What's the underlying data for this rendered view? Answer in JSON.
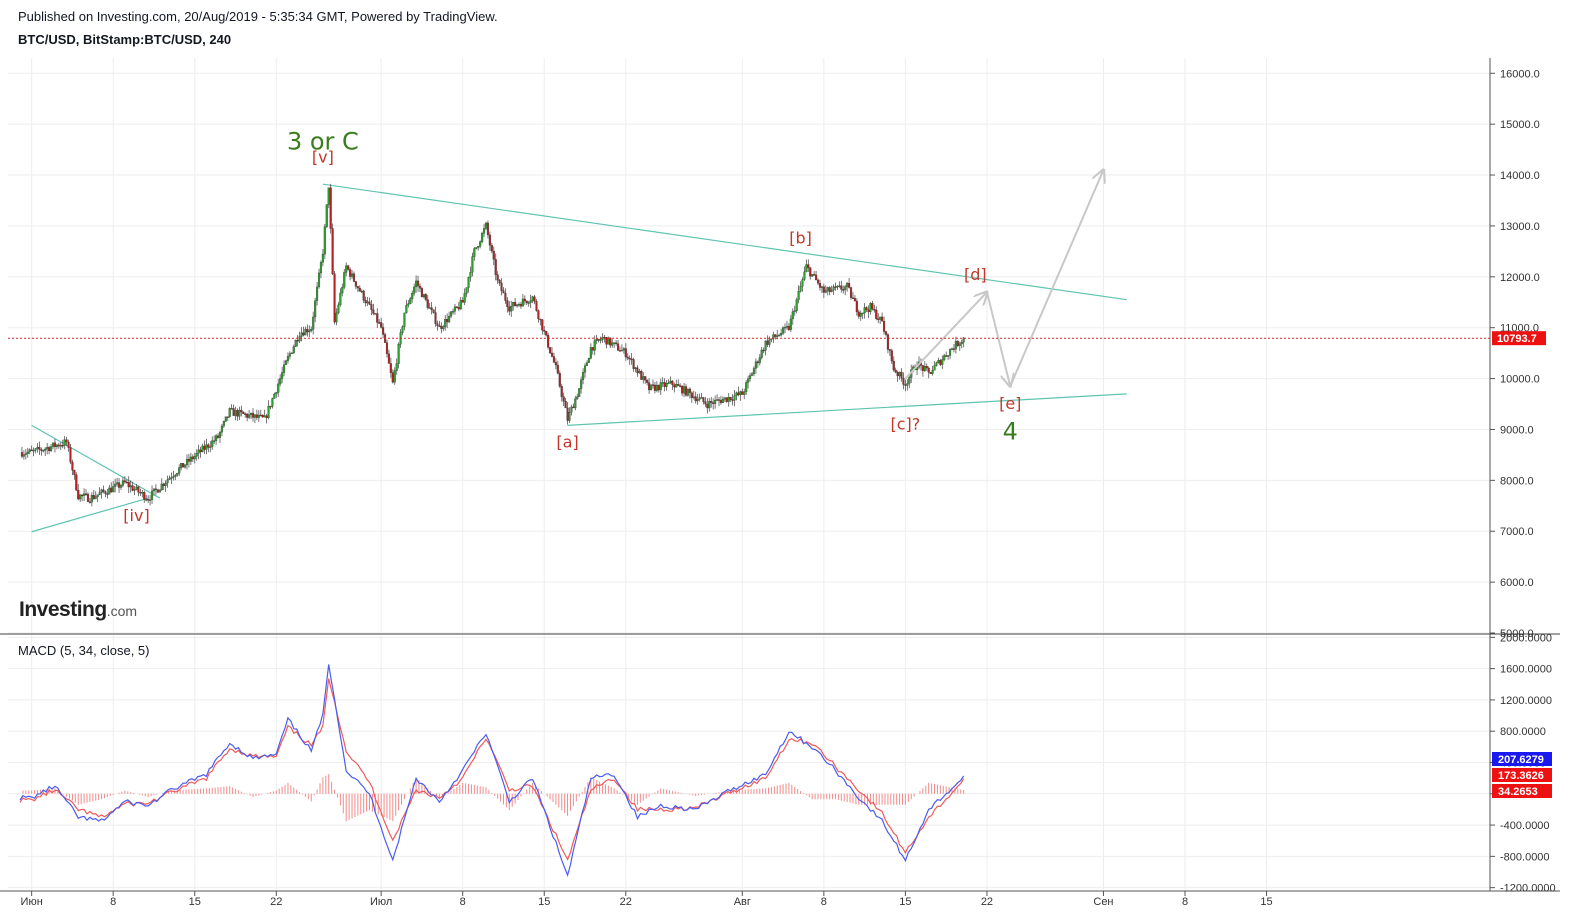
{
  "header": {
    "published": "Published on Investing.com, 20/Aug/2019 - 5:35:34 GMT, Powered by TradingView.",
    "symbol": "BTC/USD, BitStamp:BTC/USD, 240"
  },
  "logo": {
    "bold": "Investing",
    "suffix": ".com"
  },
  "macd_label": "MACD (5, 34, close, 5)",
  "colors": {
    "up": "#2e9e2e",
    "down": "#b22222",
    "trend": "#5ec4b0",
    "price_line": "#e02020",
    "wave_label": "#c0392b",
    "wave_big": "#3a7d1e",
    "projection": "#c8c8c8",
    "macd_line": "#4a5cf0",
    "signal_line": "#ef5a5a",
    "hist": "#f28b8b",
    "grid": "#eeeeee"
  },
  "chart_data": [
    {
      "type": "candlestick",
      "title": "BTC/USD, BitStamp:BTC/USD, 240",
      "ylim": [
        5000,
        16300
      ],
      "y_ticks": [
        "16000.0",
        "15000.0",
        "14000.0",
        "13000.0",
        "12000.0",
        "11000.0",
        "10000.0",
        "9000.0",
        "8000.0",
        "7000.0",
        "6000.0",
        "5000.0"
      ],
      "last_price": 10793.7,
      "last_price_label": "10793.7",
      "x_ticks": [
        "Июн",
        "8",
        "15",
        "22",
        "Июл",
        "8",
        "15",
        "22",
        "Авг",
        "8",
        "15",
        "22",
        "Сен",
        "8",
        "15"
      ],
      "price_path": [
        [
          "2019-06-01",
          8550
        ],
        [
          "2019-06-04",
          8750
        ],
        [
          "2019-06-05",
          7700
        ],
        [
          "2019-06-06",
          7650
        ],
        [
          "2019-06-09",
          7950
        ],
        [
          "2019-06-11",
          7650
        ],
        [
          "2019-06-13",
          8100
        ],
        [
          "2019-06-17",
          8850
        ],
        [
          "2019-06-18",
          9350
        ],
        [
          "2019-06-21",
          9200
        ],
        [
          "2019-06-23",
          10400
        ],
        [
          "2019-06-24",
          10900
        ],
        [
          "2019-06-25",
          11000
        ],
        [
          "2019-06-26",
          12500
        ],
        [
          "2019-06-26T12",
          13800
        ],
        [
          "2019-06-27",
          11100
        ],
        [
          "2019-06-28",
          12200
        ],
        [
          "2019-07-01",
          11000
        ],
        [
          "2019-07-02",
          9900
        ],
        [
          "2019-07-03",
          11300
        ],
        [
          "2019-07-04",
          11900
        ],
        [
          "2019-07-06",
          11000
        ],
        [
          "2019-07-08",
          11500
        ],
        [
          "2019-07-09",
          12500
        ],
        [
          "2019-07-10",
          13000
        ],
        [
          "2019-07-11",
          11900
        ],
        [
          "2019-07-12",
          11400
        ],
        [
          "2019-07-14",
          11600
        ],
        [
          "2019-07-15",
          10900
        ],
        [
          "2019-07-16",
          10200
        ],
        [
          "2019-07-17",
          9200
        ],
        [
          "2019-07-18",
          9800
        ],
        [
          "2019-07-19",
          10600
        ],
        [
          "2019-07-20",
          10800
        ],
        [
          "2019-07-22",
          10500
        ],
        [
          "2019-07-24",
          9800
        ],
        [
          "2019-07-26",
          9900
        ],
        [
          "2019-07-29",
          9500
        ],
        [
          "2019-08-01",
          9700
        ],
        [
          "2019-08-03",
          10700
        ],
        [
          "2019-08-05",
          11000
        ],
        [
          "2019-08-06",
          11800
        ],
        [
          "2019-08-06T12",
          12200
        ],
        [
          "2019-08-08",
          11700
        ],
        [
          "2019-08-10",
          11800
        ],
        [
          "2019-08-11",
          11300
        ],
        [
          "2019-08-12",
          11400
        ],
        [
          "2019-08-13",
          11100
        ],
        [
          "2019-08-14",
          10200
        ],
        [
          "2019-08-15",
          9900
        ],
        [
          "2019-08-16",
          10300
        ],
        [
          "2019-08-17",
          10100
        ],
        [
          "2019-08-19",
          10600
        ],
        [
          "2019-08-20",
          10793.7
        ]
      ],
      "trendlines": [
        [
          [
            "2019-06-26",
            13820
          ],
          [
            "2019-09-03",
            11550
          ]
        ],
        [
          [
            "2019-07-17",
            9080
          ],
          [
            "2019-09-03",
            9700
          ]
        ],
        [
          [
            "2019-06-01",
            9080
          ],
          [
            "2019-06-12",
            7650
          ]
        ],
        [
          [
            "2019-06-01",
            6990
          ],
          [
            "2019-06-11",
            7650
          ]
        ]
      ],
      "projection": [
        [
          "2019-08-15",
          10000
        ],
        [
          "2019-08-22",
          11700
        ],
        [
          "2019-08-24",
          9850
        ],
        [
          "2019-09-01",
          14100
        ]
      ],
      "wave_labels": [
        {
          "text": "[iv]",
          "x": "2019-06-10",
          "y": 7200
        },
        {
          "text": "[v]",
          "x": "2019-06-26",
          "y": 14250
        },
        {
          "text": "[a]",
          "x": "2019-07-17",
          "y": 8650
        },
        {
          "text": "[b]",
          "x": "2019-08-06",
          "y": 12650
        },
        {
          "text": "[c]?",
          "x": "2019-08-15",
          "y": 9000
        },
        {
          "text": "[d]",
          "x": "2019-08-21",
          "y": 11940
        },
        {
          "text": "[e]",
          "x": "2019-08-24",
          "y": 9400
        }
      ],
      "big_labels": [
        {
          "text": "3 or C",
          "x": "2019-06-26",
          "y": 14500
        },
        {
          "text": "4",
          "x": "2019-08-24",
          "y": 8800
        }
      ]
    },
    {
      "type": "line",
      "title": "MACD (5, 34, close, 5)",
      "ylim": [
        -1230,
        2030
      ],
      "y_ticks": [
        "2000.0000",
        "1600.0000",
        "1200.0000",
        "800.0000",
        "400.0000",
        "0.0000",
        "-400.0000",
        "-800.0000",
        "-1200.0000"
      ],
      "last_labels": {
        "macd": "207.6279",
        "signal": "173.3626",
        "histogram": "34.2653"
      },
      "macd": [
        [
          "2019-06-01",
          -50
        ],
        [
          "2019-06-03",
          100
        ],
        [
          "2019-06-05",
          -300
        ],
        [
          "2019-06-07",
          -350
        ],
        [
          "2019-06-09",
          -100
        ],
        [
          "2019-06-11",
          -150
        ],
        [
          "2019-06-13",
          50
        ],
        [
          "2019-06-16",
          250
        ],
        [
          "2019-06-18",
          650
        ],
        [
          "2019-06-20",
          450
        ],
        [
          "2019-06-22",
          500
        ],
        [
          "2019-06-23",
          950
        ],
        [
          "2019-06-25",
          550
        ],
        [
          "2019-06-26",
          1000
        ],
        [
          "2019-06-26T12",
          1680
        ],
        [
          "2019-06-28",
          300
        ],
        [
          "2019-06-30",
          0
        ],
        [
          "2019-07-02",
          -850
        ],
        [
          "2019-07-04",
          200
        ],
        [
          "2019-07-06",
          -100
        ],
        [
          "2019-07-08",
          300
        ],
        [
          "2019-07-10",
          780
        ],
        [
          "2019-07-12",
          -100
        ],
        [
          "2019-07-14",
          200
        ],
        [
          "2019-07-17",
          -1050
        ],
        [
          "2019-07-19",
          200
        ],
        [
          "2019-07-21",
          250
        ],
        [
          "2019-07-23",
          -300
        ],
        [
          "2019-07-25",
          -150
        ],
        [
          "2019-07-28",
          -200
        ],
        [
          "2019-07-31",
          50
        ],
        [
          "2019-08-03",
          250
        ],
        [
          "2019-08-05",
          800
        ],
        [
          "2019-08-07",
          600
        ],
        [
          "2019-08-09",
          300
        ],
        [
          "2019-08-11",
          -50
        ],
        [
          "2019-08-13",
          -350
        ],
        [
          "2019-08-15",
          -850
        ],
        [
          "2019-08-17",
          -200
        ],
        [
          "2019-08-20",
          207.6279
        ]
      ],
      "signal": [
        [
          "2019-06-01",
          -80
        ],
        [
          "2019-06-03",
          50
        ],
        [
          "2019-06-05",
          -200
        ],
        [
          "2019-06-07",
          -300
        ],
        [
          "2019-06-09",
          -130
        ],
        [
          "2019-06-11",
          -120
        ],
        [
          "2019-06-13",
          20
        ],
        [
          "2019-06-16",
          200
        ],
        [
          "2019-06-18",
          580
        ],
        [
          "2019-06-20",
          480
        ],
        [
          "2019-06-22",
          470
        ],
        [
          "2019-06-23",
          850
        ],
        [
          "2019-06-25",
          620
        ],
        [
          "2019-06-26",
          850
        ],
        [
          "2019-06-26T12",
          1500
        ],
        [
          "2019-06-28",
          550
        ],
        [
          "2019-06-30",
          150
        ],
        [
          "2019-07-02",
          -600
        ],
        [
          "2019-07-04",
          50
        ],
        [
          "2019-07-06",
          -50
        ],
        [
          "2019-07-08",
          200
        ],
        [
          "2019-07-10",
          720
        ],
        [
          "2019-07-12",
          50
        ],
        [
          "2019-07-14",
          100
        ],
        [
          "2019-07-17",
          -850
        ],
        [
          "2019-07-19",
          50
        ],
        [
          "2019-07-21",
          200
        ],
        [
          "2019-07-23",
          -200
        ],
        [
          "2019-07-25",
          -200
        ],
        [
          "2019-07-28",
          -180
        ],
        [
          "2019-07-31",
          20
        ],
        [
          "2019-08-03",
          200
        ],
        [
          "2019-08-05",
          700
        ],
        [
          "2019-08-07",
          650
        ],
        [
          "2019-08-09",
          350
        ],
        [
          "2019-08-11",
          50
        ],
        [
          "2019-08-13",
          -250
        ],
        [
          "2019-08-15",
          -750
        ],
        [
          "2019-08-17",
          -300
        ],
        [
          "2019-08-20",
          173.3626
        ]
      ]
    }
  ]
}
